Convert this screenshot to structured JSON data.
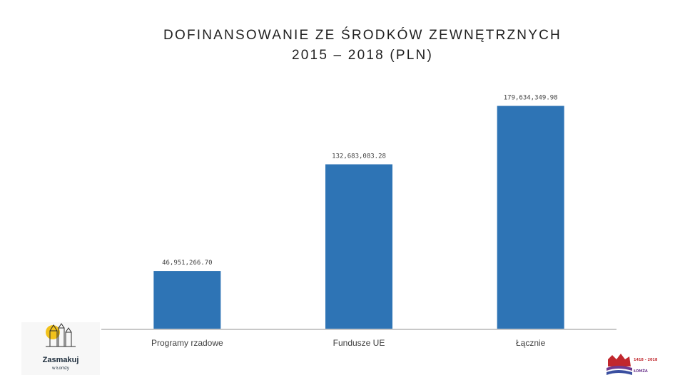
{
  "chart_data": {
    "type": "bar",
    "title_line1": "DOFINANSOWANIE ZE ŚRODKÓW ZEWNĘTRZNYCH",
    "title_line2": "2015 – 2018 (PLN)",
    "categories": [
      "Programy rzadowe",
      "Fundusze UE",
      "Łącznie"
    ],
    "values": [
      46951266.7,
      132683083.28,
      179634349.98
    ],
    "value_labels": [
      "46,951,266.70",
      "132,683,083.28",
      "179,634,349.98"
    ],
    "ylim": [
      0,
      200000000
    ],
    "bar_color": "#2e74b5",
    "grid": false,
    "xlabel": "",
    "ylabel": ""
  },
  "logos": {
    "left_line1": "Zasmakuj",
    "left_line2": "w Łomży",
    "right_years": "1418 - 2018",
    "right_city": "ŁOMŻA"
  }
}
